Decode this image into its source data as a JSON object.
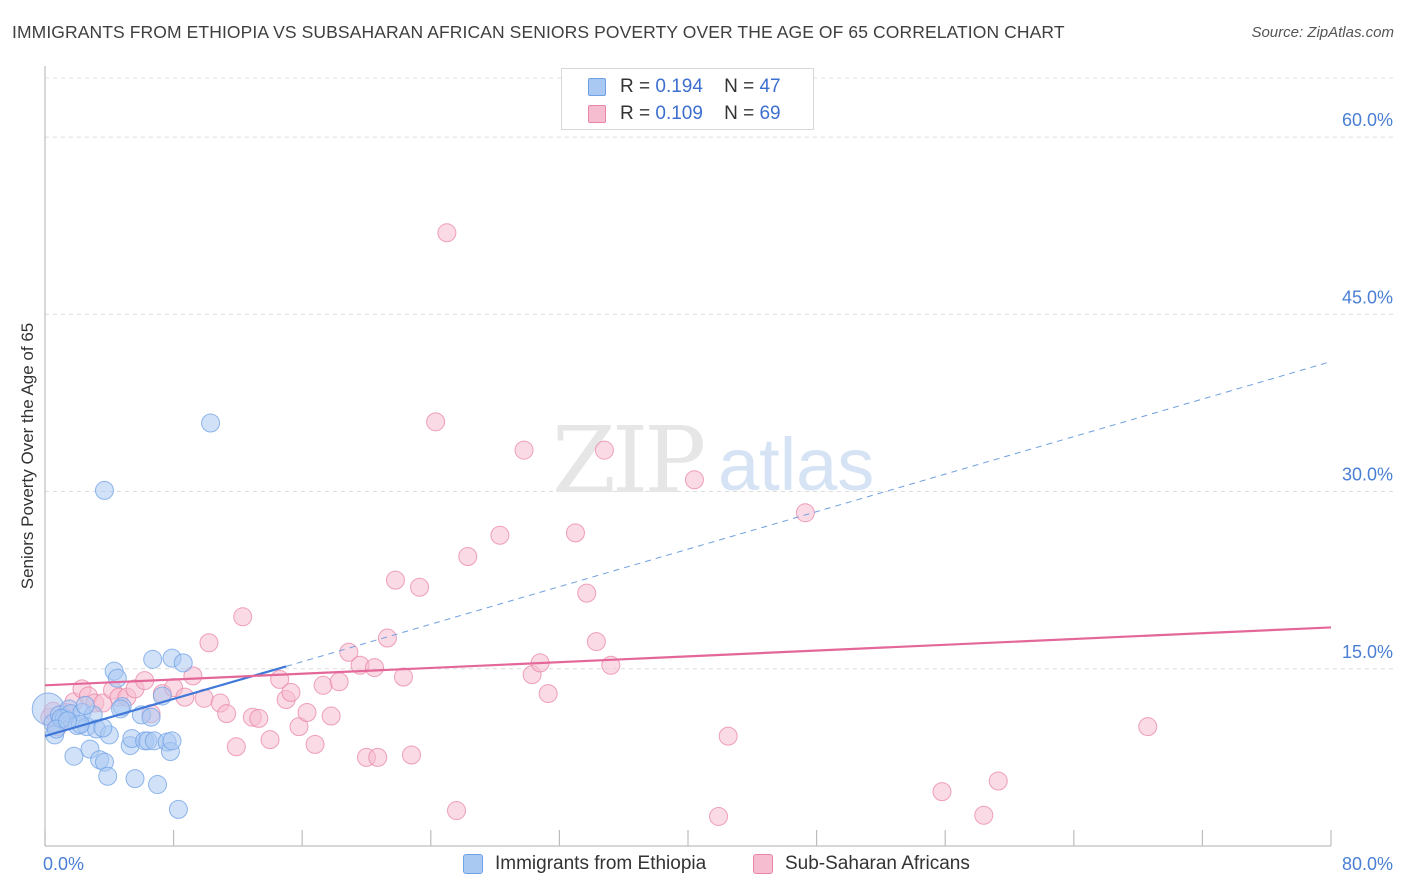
{
  "title": "IMMIGRANTS FROM ETHIOPIA VS SUBSAHARAN AFRICAN SENIORS POVERTY OVER THE AGE OF 65 CORRELATION CHART",
  "source": "Source: ZipAtlas.com",
  "watermark": {
    "zip": "ZIP",
    "atlas": "atlas"
  },
  "legend": [
    {
      "r_label": "R =",
      "r_value": "0.194",
      "n_label": "N =",
      "n_value": "47",
      "color": "#a9c8f2"
    },
    {
      "r_label": "R =",
      "r_value": "0.109",
      "n_label": "N =",
      "n_value": "69",
      "color": "#f6bcd0"
    }
  ],
  "bottom_legend": [
    {
      "label": "Immigrants from Ethiopia",
      "color": "#a9c8f2"
    },
    {
      "label": "Sub-Saharan Africans",
      "color": "#f6bcd0"
    }
  ],
  "chart_data": {
    "type": "scatter",
    "title": "IMMIGRANTS FROM ETHIOPIA VS SUBSAHARAN AFRICAN SENIORS POVERTY OVER THE AGE OF 65 CORRELATION CHART",
    "xlabel": "",
    "ylabel": "Seniors Poverty Over the Age of 65",
    "xlim": [
      0,
      80
    ],
    "ylim": [
      0,
      65
    ],
    "x_tick_labels": [
      {
        "value": 0,
        "label": "0.0%"
      },
      {
        "value": 80,
        "label": "80.0%"
      }
    ],
    "y_tick_labels": [
      {
        "value": 15,
        "label": "15.0%"
      },
      {
        "value": 30,
        "label": "30.0%"
      },
      {
        "value": 45,
        "label": "45.0%"
      },
      {
        "value": 60,
        "label": "60.0%"
      }
    ],
    "grid": true,
    "series": [
      {
        "name": "Immigrants from Ethiopia",
        "color": "#6fa0e6",
        "fill": "#a9c8f2",
        "r": 0.194,
        "n": 47,
        "trend": {
          "x0": 0,
          "y0": 9.3,
          "x1": 15,
          "y1": 15.2,
          "dashed_to": {
            "x": 80,
            "y": 41
          }
        },
        "points": [
          [
            0.2,
            11.6
          ],
          [
            0.5,
            10.4
          ],
          [
            0.6,
            9.4
          ],
          [
            0.9,
            11.1
          ],
          [
            1.2,
            10.8
          ],
          [
            1.5,
            11.6
          ],
          [
            1.6,
            11.2
          ],
          [
            1.8,
            7.6
          ],
          [
            2.0,
            10.2
          ],
          [
            2.3,
            11.3
          ],
          [
            2.6,
            10.1
          ],
          [
            2.8,
            8.2
          ],
          [
            3.0,
            11.1
          ],
          [
            3.2,
            9.9
          ],
          [
            3.4,
            7.3
          ],
          [
            3.7,
            7.1
          ],
          [
            3.9,
            5.9
          ],
          [
            4.0,
            9.4
          ],
          [
            4.3,
            14.8
          ],
          [
            4.5,
            14.2
          ],
          [
            4.8,
            11.8
          ],
          [
            5.3,
            8.5
          ],
          [
            5.4,
            9.1
          ],
          [
            5.6,
            5.7
          ],
          [
            6.0,
            11.1
          ],
          [
            6.2,
            8.9
          ],
          [
            6.4,
            8.9
          ],
          [
            6.6,
            10.9
          ],
          [
            6.8,
            8.9
          ],
          [
            7.0,
            5.2
          ],
          [
            7.3,
            12.7
          ],
          [
            7.6,
            8.8
          ],
          [
            7.9,
            15.9
          ],
          [
            7.8,
            8.0
          ],
          [
            7.9,
            8.9
          ],
          [
            6.7,
            15.8
          ],
          [
            8.6,
            15.5
          ],
          [
            8.3,
            3.1
          ],
          [
            10.3,
            35.8
          ],
          [
            3.7,
            30.1
          ],
          [
            1.0,
            10.8
          ],
          [
            0.7,
            9.9
          ],
          [
            2.2,
            10.3
          ],
          [
            1.4,
            10.6
          ],
          [
            4.7,
            11.6
          ],
          [
            3.6,
            10.0
          ],
          [
            2.5,
            11.9
          ]
        ]
      },
      {
        "name": "Sub-Saharan Africans",
        "color": "#e984a6",
        "fill": "#f6bcd0",
        "r": 0.109,
        "n": 69,
        "trend": {
          "x0": 0,
          "y0": 13.6,
          "x1": 80,
          "y1": 18.5
        },
        "points": [
          [
            0.3,
            10.9
          ],
          [
            0.8,
            10.1
          ],
          [
            1.3,
            11.3
          ],
          [
            1.8,
            12.2
          ],
          [
            2.3,
            13.3
          ],
          [
            2.7,
            12.7
          ],
          [
            3.1,
            12.1
          ],
          [
            3.6,
            12.1
          ],
          [
            4.2,
            13.2
          ],
          [
            4.6,
            12.6
          ],
          [
            5.1,
            12.6
          ],
          [
            5.6,
            13.3
          ],
          [
            6.2,
            14.0
          ],
          [
            6.6,
            11.2
          ],
          [
            7.3,
            12.9
          ],
          [
            8.0,
            13.4
          ],
          [
            8.7,
            12.6
          ],
          [
            9.2,
            14.4
          ],
          [
            9.9,
            12.5
          ],
          [
            10.2,
            17.2
          ],
          [
            10.9,
            12.1
          ],
          [
            11.3,
            11.2
          ],
          [
            11.9,
            8.4
          ],
          [
            12.3,
            19.4
          ],
          [
            12.9,
            10.9
          ],
          [
            13.3,
            10.8
          ],
          [
            14.0,
            9.0
          ],
          [
            14.6,
            14.1
          ],
          [
            15.0,
            12.4
          ],
          [
            15.3,
            13.0
          ],
          [
            15.8,
            10.1
          ],
          [
            16.3,
            11.3
          ],
          [
            16.8,
            8.6
          ],
          [
            17.3,
            13.6
          ],
          [
            17.8,
            11.0
          ],
          [
            18.3,
            13.9
          ],
          [
            18.9,
            16.4
          ],
          [
            19.6,
            15.3
          ],
          [
            20.0,
            7.5
          ],
          [
            20.5,
            15.1
          ],
          [
            20.7,
            7.5
          ],
          [
            21.3,
            17.6
          ],
          [
            21.8,
            22.5
          ],
          [
            22.3,
            14.3
          ],
          [
            22.8,
            7.7
          ],
          [
            23.3,
            21.9
          ],
          [
            24.3,
            35.9
          ],
          [
            25.0,
            51.9
          ],
          [
            25.6,
            3.0
          ],
          [
            26.3,
            24.5
          ],
          [
            28.3,
            26.3
          ],
          [
            29.8,
            33.5
          ],
          [
            30.3,
            14.5
          ],
          [
            30.8,
            15.5
          ],
          [
            31.3,
            12.9
          ],
          [
            33.0,
            26.5
          ],
          [
            33.7,
            21.4
          ],
          [
            34.3,
            17.3
          ],
          [
            34.8,
            33.5
          ],
          [
            35.2,
            15.3
          ],
          [
            40.4,
            31.0
          ],
          [
            41.9,
            2.5
          ],
          [
            42.5,
            9.3
          ],
          [
            47.3,
            28.2
          ],
          [
            55.8,
            4.6
          ],
          [
            58.4,
            2.6
          ],
          [
            59.3,
            5.5
          ],
          [
            68.6,
            10.1
          ],
          [
            0.5,
            11.4
          ]
        ]
      }
    ]
  }
}
